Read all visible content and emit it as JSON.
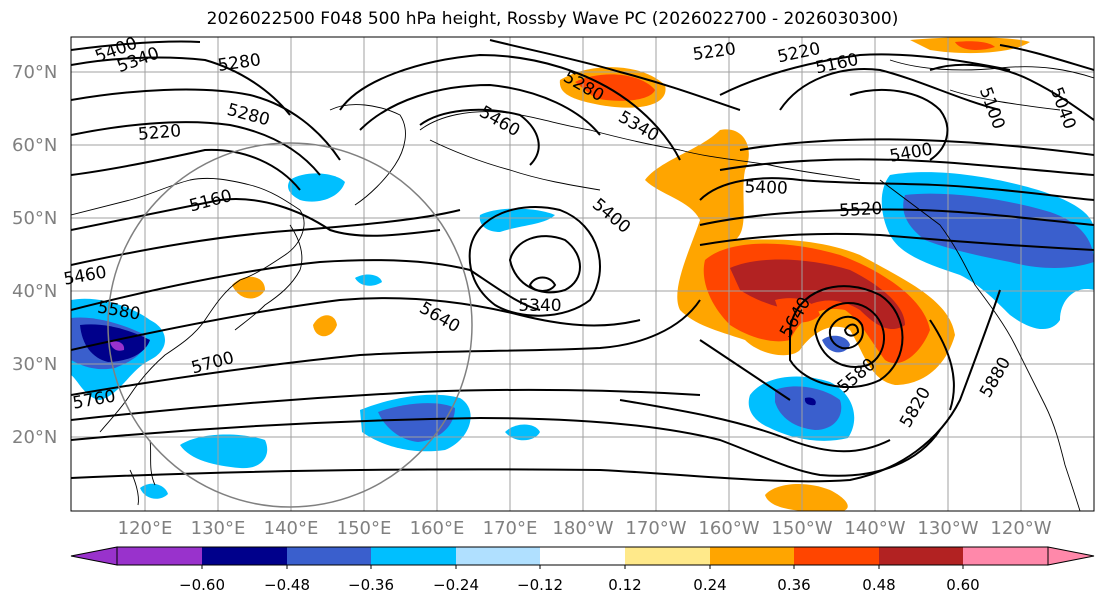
{
  "title": "2026022500 F048 500 hPa height, Rossby Wave PC (2026022700 - 2026030300)",
  "lat_labels": [
    "70°N",
    "60°N",
    "50°N",
    "40°N",
    "30°N",
    "20°N"
  ],
  "lon_labels": [
    "120°E",
    "130°E",
    "140°E",
    "150°E",
    "160°E",
    "170°E",
    "180°W",
    "170°W",
    "160°W",
    "150°W",
    "140°W",
    "130°W",
    "120°W"
  ],
  "contour_labels": [
    "5400",
    "5340",
    "5280",
    "5220",
    "5280",
    "5220",
    "5160",
    "5460",
    "5340",
    "5280",
    "5220",
    "5160",
    "5100",
    "5040",
    "5400",
    "5520",
    "5400",
    "5340",
    "5640",
    "5700",
    "5580",
    "5460",
    "5760",
    "5640",
    "5580",
    "5820",
    "5880",
    "5400"
  ],
  "colorbar": {
    "ticks": [
      "−0.60",
      "−0.48",
      "−0.36",
      "−0.24",
      "−0.12",
      "0.12",
      "0.24",
      "0.36",
      "0.48",
      "0.60"
    ],
    "colors": [
      "#9932cc",
      "#00008b",
      "#3a5fcd",
      "#00bfff",
      "#b0e0ff",
      "#ffffff",
      "#ffe98a",
      "#ffa500",
      "#ff4500",
      "#b22222",
      "#ff88aa"
    ]
  }
}
